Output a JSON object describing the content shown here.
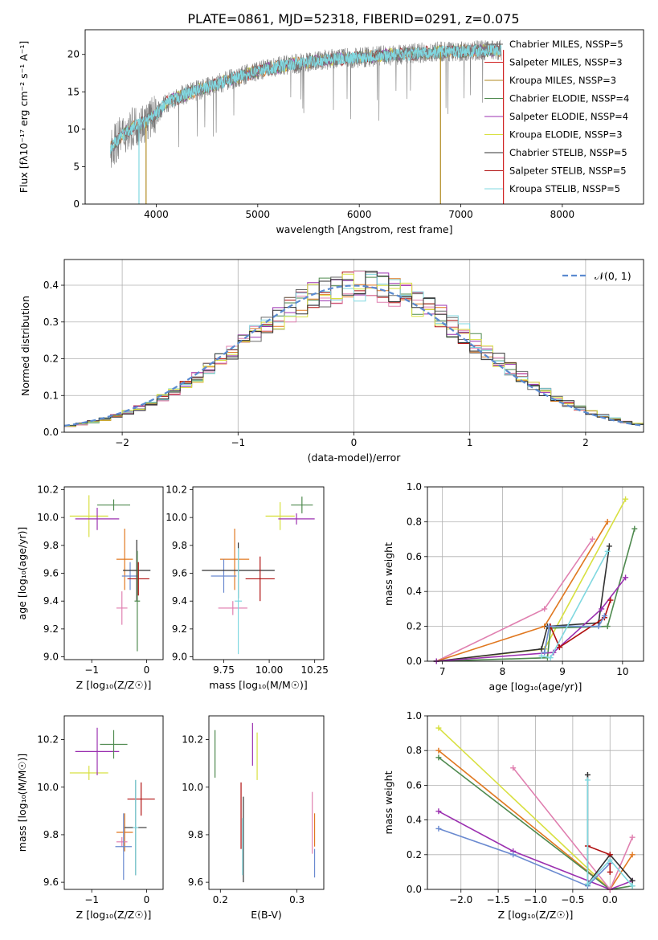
{
  "figure_title": "PLATE=0861, MJD=52318, FIBERID=0291, z=0.075",
  "series_colors": [
    "#6a6a6a",
    "#d02020",
    "#2a9090",
    "#4f8a4f",
    "#9b30b0",
    "#d8e040",
    "#303030",
    "#b01010",
    "#80d8e0",
    "#e07820",
    "#6a8ad0",
    "#e080b0"
  ],
  "chart_data": [
    {
      "type": "line",
      "xlabel": "wavelength [Angstrom, rest frame]",
      "ylabel": "Flux [fλ10⁻¹⁷ erg cm⁻² s⁻¹ A⁻¹]",
      "xlim": [
        3300,
        8800
      ],
      "ylim": [
        0,
        23.3
      ],
      "xticks": [
        4000,
        5000,
        6000,
        7000,
        8000
      ],
      "yticks": [
        0,
        5,
        10,
        15,
        20
      ],
      "legend_position": "upper-right",
      "legend": [
        {
          "label": "Chabrier MILES, NSSP=5",
          "color": "#6a6a6a"
        },
        {
          "label": "Salpeter MILES, NSSP=3",
          "color": "#d02020"
        },
        {
          "label": "Kroupa MILES, NSSP=3",
          "color": "#b08a20"
        },
        {
          "label": "Chabrier ELODIE, NSSP=4",
          "color": "#4f8a4f"
        },
        {
          "label": "Salpeter ELODIE, NSSP=4",
          "color": "#9b30b0"
        },
        {
          "label": "Kroupa ELODIE, NSSP=3",
          "color": "#d8e040"
        },
        {
          "label": "Chabrier STELIB, NSSP=5",
          "color": "#303030"
        },
        {
          "label": "Salpeter STELIB, NSSP=5",
          "color": "#b01010"
        },
        {
          "label": "Kroupa STELIB, NSSP=5",
          "color": "#80d8e0"
        }
      ],
      "spectrum_trend": {
        "x": [
          3550,
          3650,
          3800,
          3900,
          4000,
          4100,
          4300,
          4500,
          4700,
          5000,
          5300,
          5600,
          6000,
          6300,
          6600,
          6900,
          7200,
          7400
        ],
        "y": [
          7.5,
          9.0,
          10.5,
          11.0,
          12.0,
          13.5,
          14.8,
          15.6,
          16.5,
          17.8,
          18.6,
          19.2,
          19.6,
          19.9,
          20.2,
          20.4,
          20.5,
          20.6
        ]
      }
    },
    {
      "type": "histogram",
      "xlabel": "(data-model)/error",
      "ylabel": "Normed distribution",
      "xlim": [
        -2.5,
        2.5
      ],
      "ylim": [
        0,
        0.47
      ],
      "xticks": [
        -2,
        -1,
        0,
        1,
        2
      ],
      "yticks": [
        0.0,
        0.1,
        0.2,
        0.3,
        0.4
      ],
      "grid": true,
      "legend_position": "upper-right",
      "normal_curve": {
        "label": "𝒩(0, 1)",
        "color": "#5a8ad0"
      },
      "bin_width": 0.1
    },
    {
      "type": "scatter",
      "xlabel": "Z [log₁₀(Z/Z☉)]",
      "ylabel": "age  [log₁₀(age/yr)]",
      "xlim": [
        -1.5,
        0.3
      ],
      "ylim": [
        8.98,
        10.22
      ],
      "xticks": [
        -1,
        0
      ],
      "yticks": [
        9.0,
        9.2,
        9.4,
        9.6,
        9.8,
        10.0,
        10.2
      ],
      "points": [
        {
          "x": -1.05,
          "y": 10.01,
          "xerr": 0.35,
          "yerr": 0.15,
          "color": "#d8e040"
        },
        {
          "x": -0.9,
          "y": 9.99,
          "xerr": 0.4,
          "yerr": 0.08,
          "color": "#9b30b0"
        },
        {
          "x": -0.6,
          "y": 10.09,
          "xerr": 0.3,
          "yerr": 0.04,
          "color": "#4f8a4f"
        },
        {
          "x": -0.4,
          "y": 9.7,
          "xerr": 0.15,
          "yerr": 0.22,
          "color": "#e07820"
        },
        {
          "x": -0.45,
          "y": 9.35,
          "xerr": 0.1,
          "yerr": 0.12,
          "color": "#e080b0"
        },
        {
          "x": -0.3,
          "y": 9.58,
          "xerr": 0.15,
          "yerr": 0.1,
          "color": "#6a8ad0"
        },
        {
          "x": -0.18,
          "y": 9.62,
          "xerr": 0.25,
          "yerr": 0.22,
          "color": "#303030"
        },
        {
          "x": -0.15,
          "y": 9.56,
          "xerr": 0.2,
          "yerr": 0.12,
          "color": "#b01010"
        },
        {
          "x": -0.17,
          "y": 9.4,
          "xerr": 0.05,
          "yerr": 0.36,
          "color": "#4f8a4f"
        }
      ]
    },
    {
      "type": "scatter",
      "xlabel": "mass [log₁₀(M/M☉)]",
      "ylabel": "",
      "xlim": [
        9.58,
        10.3
      ],
      "ylim": [
        8.98,
        10.22
      ],
      "xticks": [
        9.75,
        10.0,
        10.25
      ],
      "yticks": [
        9.0,
        9.2,
        9.4,
        9.6,
        9.8,
        10.0,
        10.2
      ],
      "points": [
        {
          "x": 10.06,
          "y": 10.01,
          "xerr": 0.08,
          "yerr": 0.1,
          "color": "#d8e040"
        },
        {
          "x": 10.15,
          "y": 9.99,
          "xerr": 0.1,
          "yerr": 0.04,
          "color": "#9b30b0"
        },
        {
          "x": 10.18,
          "y": 10.09,
          "xerr": 0.06,
          "yerr": 0.06,
          "color": "#4f8a4f"
        },
        {
          "x": 9.81,
          "y": 9.7,
          "xerr": 0.08,
          "yerr": 0.22,
          "color": "#e07820"
        },
        {
          "x": 9.8,
          "y": 9.35,
          "xerr": 0.08,
          "yerr": 0.05,
          "color": "#e080b0"
        },
        {
          "x": 9.75,
          "y": 9.58,
          "xerr": 0.07,
          "yerr": 0.12,
          "color": "#6a8ad0"
        },
        {
          "x": 9.83,
          "y": 9.62,
          "xerr": 0.2,
          "yerr": 0.2,
          "color": "#303030"
        },
        {
          "x": 9.95,
          "y": 9.56,
          "xerr": 0.08,
          "yerr": 0.16,
          "color": "#b01010"
        },
        {
          "x": 9.83,
          "y": 9.4,
          "xerr": 0.02,
          "yerr": 0.38,
          "color": "#80d8e0"
        }
      ]
    },
    {
      "type": "line",
      "xlabel": "age  [log₁₀(age/yr)]",
      "ylabel": "mass weight",
      "xlim": [
        6.75,
        10.35
      ],
      "ylim": [
        0,
        1.0
      ],
      "xticks": [
        7,
        8,
        9,
        10
      ],
      "yticks": [
        0.0,
        0.2,
        0.4,
        0.6,
        0.8,
        1.0
      ],
      "grid": true,
      "series": [
        {
          "name": "",
          "color": "#e080b0",
          "x": [
            6.9,
            8.7,
            9.5
          ],
          "y": [
            0.0,
            0.3,
            0.7
          ]
        },
        {
          "name": "",
          "color": "#e07820",
          "x": [
            6.9,
            8.7,
            9.75
          ],
          "y": [
            0.0,
            0.2,
            0.8
          ]
        },
        {
          "name": "",
          "color": "#d8e040",
          "x": [
            6.9,
            8.7,
            10.05
          ],
          "y": [
            0.0,
            0.07,
            0.93
          ]
        },
        {
          "name": "",
          "color": "#303030",
          "x": [
            6.9,
            8.65,
            8.75,
            9.6,
            9.78
          ],
          "y": [
            0.0,
            0.07,
            0.2,
            0.22,
            0.66
          ]
        },
        {
          "name": "",
          "color": "#4f8a4f",
          "x": [
            6.9,
            8.75,
            8.8,
            9.75,
            10.2
          ],
          "y": [
            0.0,
            0.02,
            0.19,
            0.2,
            0.76
          ]
        },
        {
          "name": "",
          "color": "#9b30b0",
          "x": [
            6.9,
            8.85,
            9.65,
            10.05
          ],
          "y": [
            0.0,
            0.05,
            0.3,
            0.48
          ]
        },
        {
          "name": "",
          "color": "#b01010",
          "x": [
            8.8,
            8.95,
            9.7,
            9.8
          ],
          "y": [
            0.2,
            0.08,
            0.25,
            0.35
          ]
        },
        {
          "name": "",
          "color": "#6a8ad0",
          "x": [
            8.7,
            8.78,
            9.6,
            9.7
          ],
          "y": [
            0.05,
            0.2,
            0.2,
            0.26
          ]
        },
        {
          "name": "",
          "color": "#80d8e0",
          "x": [
            8.65,
            8.8,
            9.75
          ],
          "y": [
            0.03,
            0.02,
            0.63
          ]
        }
      ]
    },
    {
      "type": "scatter",
      "xlabel": "Z [log₁₀(Z/Z☉)]",
      "ylabel": "mass [log₁₀(M/M☉)]",
      "xlim": [
        -1.5,
        0.3
      ],
      "ylim": [
        9.57,
        10.3
      ],
      "xticks": [
        -1,
        0
      ],
      "yticks": [
        9.6,
        9.8,
        10.0,
        10.2
      ],
      "points": [
        {
          "x": -1.05,
          "y": 10.06,
          "xerr": 0.35,
          "yerr": 0.03,
          "color": "#d8e040"
        },
        {
          "x": -0.9,
          "y": 10.15,
          "xerr": 0.4,
          "yerr": 0.1,
          "color": "#9b30b0"
        },
        {
          "x": -0.6,
          "y": 10.18,
          "xerr": 0.25,
          "yerr": 0.06,
          "color": "#4f8a4f"
        },
        {
          "x": -0.4,
          "y": 9.81,
          "xerr": 0.15,
          "yerr": 0.08,
          "color": "#e07820"
        },
        {
          "x": -0.45,
          "y": 9.77,
          "xerr": 0.1,
          "yerr": 0.02,
          "color": "#e080b0"
        },
        {
          "x": -0.42,
          "y": 9.75,
          "xerr": 0.15,
          "yerr": 0.14,
          "color": "#6a8ad0"
        },
        {
          "x": -0.2,
          "y": 9.83,
          "xerr": 0.2,
          "yerr": 0.2,
          "color": "#303030"
        },
        {
          "x": -0.1,
          "y": 9.95,
          "xerr": 0.25,
          "yerr": 0.07,
          "color": "#b01010"
        },
        {
          "x": -0.2,
          "y": 9.83,
          "xerr": 0.05,
          "yerr": 0.2,
          "color": "#80d8e0"
        }
      ]
    },
    {
      "type": "scatter",
      "xlabel": "E(B-V)",
      "ylabel": "",
      "xlim": [
        0.185,
        0.335
      ],
      "ylim": [
        9.57,
        10.3
      ],
      "xticks": [
        0.2,
        0.3
      ],
      "yticks": [
        9.6,
        9.8,
        10.0,
        10.2
      ],
      "points": [
        {
          "x": 0.193,
          "y": 10.14,
          "xerr": 0,
          "yerr": 0.1,
          "color": "#4f8a4f"
        },
        {
          "x": 0.242,
          "y": 10.18,
          "xerr": 0,
          "yerr": 0.09,
          "color": "#9b30b0"
        },
        {
          "x": 0.248,
          "y": 10.13,
          "xerr": 0,
          "yerr": 0.1,
          "color": "#d8e040"
        },
        {
          "x": 0.227,
          "y": 9.88,
          "xerr": 0,
          "yerr": 0.14,
          "color": "#b01010"
        },
        {
          "x": 0.23,
          "y": 9.78,
          "xerr": 0,
          "yerr": 0.18,
          "color": "#303030"
        },
        {
          "x": 0.229,
          "y": 9.75,
          "xerr": 0,
          "yerr": 0.12,
          "color": "#80d8e0"
        },
        {
          "x": 0.32,
          "y": 9.85,
          "xerr": 0,
          "yerr": 0.13,
          "color": "#e080b0"
        },
        {
          "x": 0.323,
          "y": 9.82,
          "xerr": 0,
          "yerr": 0.07,
          "color": "#e07820"
        },
        {
          "x": 0.323,
          "y": 9.68,
          "xerr": 0,
          "yerr": 0.06,
          "color": "#6a8ad0"
        }
      ]
    },
    {
      "type": "line",
      "xlabel": "Z [log₁₀(Z/Z☉)]",
      "ylabel": "mass weight",
      "xlim": [
        -2.45,
        0.45
      ],
      "ylim": [
        0,
        1.0
      ],
      "xticks": [
        -2.0,
        -1.5,
        -1.0,
        -0.5,
        0.0
      ],
      "yticks": [
        0.0,
        0.2,
        0.4,
        0.6,
        0.8,
        1.0
      ],
      "grid": true,
      "series": [
        {
          "name": "",
          "color": "#d8e040",
          "x": [
            -2.3,
            0.0
          ],
          "y": [
            0.93,
            0.0
          ]
        },
        {
          "name": "",
          "color": "#e07820",
          "x": [
            -2.3,
            0.0,
            0.3
          ],
          "y": [
            0.8,
            0.0,
            0.2
          ]
        },
        {
          "name": "",
          "color": "#4f8a4f",
          "x": [
            -2.3,
            0.0,
            0.3
          ],
          "y": [
            0.76,
            0.0,
            0.02
          ]
        },
        {
          "name": "",
          "color": "#9b30b0",
          "x": [
            -2.3,
            -1.3,
            0.0,
            0.3
          ],
          "y": [
            0.45,
            0.22,
            0.0,
            0.05
          ]
        },
        {
          "name": "",
          "color": "#6a8ad0",
          "x": [
            -2.3,
            -1.3,
            -0.3,
            0.0
          ],
          "y": [
            0.35,
            0.2,
            0.02,
            0.15
          ]
        },
        {
          "name": "",
          "color": "#e080b0",
          "x": [
            -1.3,
            0.0,
            0.3
          ],
          "y": [
            0.7,
            0.0,
            0.3
          ]
        },
        {
          "name": "",
          "color": "#303030",
          "x": [
            -0.3,
            -0.3,
            0.0,
            0.3
          ],
          "y": [
            0.66,
            0.03,
            0.2,
            0.05
          ]
        },
        {
          "name": "",
          "color": "#b01010",
          "x": [
            -0.3,
            0.0,
            0.0
          ],
          "y": [
            0.25,
            0.2,
            0.1
          ]
        },
        {
          "name": "",
          "color": "#80d8e0",
          "x": [
            -0.3,
            -0.3,
            0.0,
            0.3
          ],
          "y": [
            0.63,
            0.03,
            0.17,
            0.02
          ]
        }
      ]
    }
  ]
}
